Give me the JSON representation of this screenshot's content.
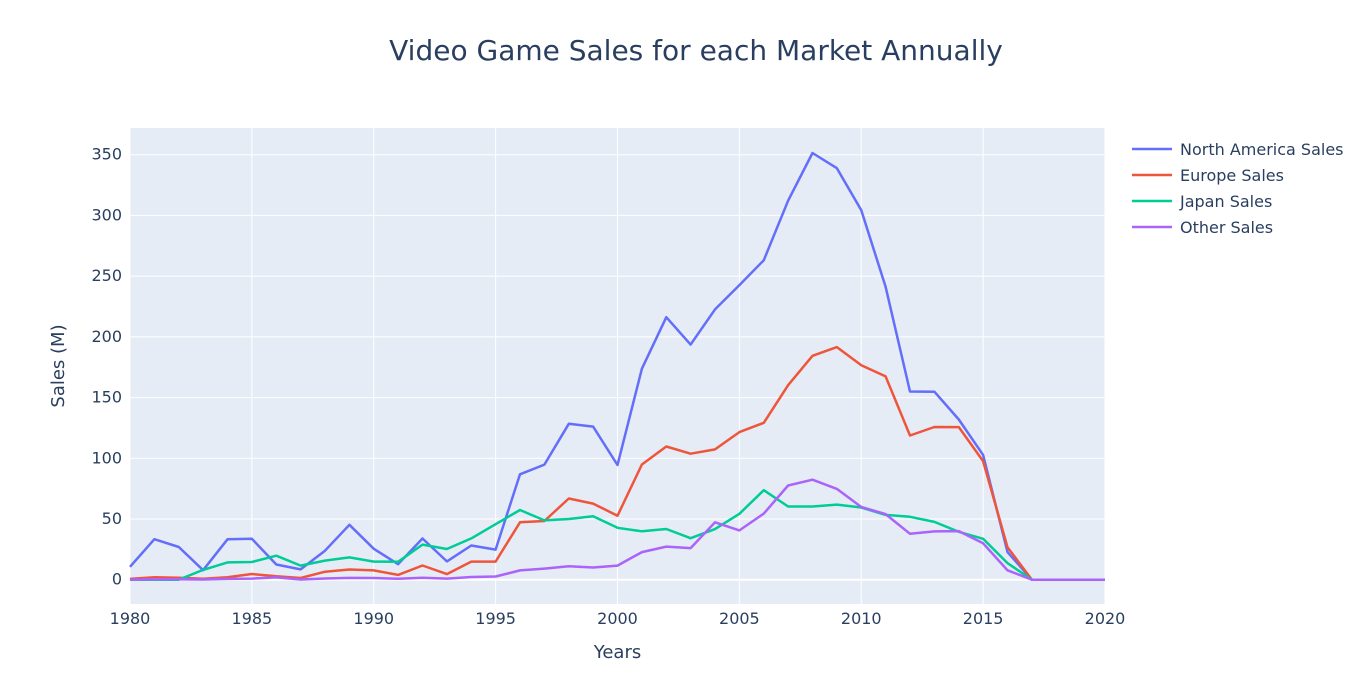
{
  "chart_data": {
    "type": "line",
    "title": "Video Game Sales for each Market Annually",
    "xlabel": "Years",
    "ylabel": "Sales (M)",
    "xlim": [
      1980,
      2020
    ],
    "ylim": [
      -20,
      372
    ],
    "x_ticks": [
      "1980",
      "1985",
      "1990",
      "1995",
      "2000",
      "2005",
      "2010",
      "2015",
      "2020"
    ],
    "y_ticks": [
      "0",
      "50",
      "100",
      "150",
      "200",
      "250",
      "300",
      "350"
    ],
    "grid": true,
    "legend_position": "right",
    "x": [
      1980,
      1981,
      1982,
      1983,
      1984,
      1985,
      1986,
      1987,
      1988,
      1989,
      1990,
      1991,
      1992,
      1993,
      1994,
      1995,
      1996,
      1997,
      1998,
      1999,
      2000,
      2001,
      2002,
      2003,
      2004,
      2005,
      2006,
      2007,
      2008,
      2009,
      2010,
      2011,
      2012,
      2013,
      2014,
      2015,
      2016,
      2017,
      2020
    ],
    "series": [
      {
        "name": "North America Sales",
        "color": "#636efa",
        "values": [
          10.6,
          33.4,
          26.9,
          7.8,
          33.3,
          33.7,
          12.5,
          8.5,
          23.9,
          45.2,
          25.5,
          12.8,
          33.9,
          15.1,
          28.2,
          24.8,
          86.8,
          94.8,
          128.4,
          126.1,
          94.5,
          173.8,
          216.2,
          193.6,
          222.6,
          242.6,
          263.1,
          312.1,
          351.4,
          338.9,
          304.2,
          241.2,
          154.96,
          154.8,
          131.97,
          102.8,
          22.7,
          0.0,
          0.0
        ]
      },
      {
        "name": "Europe Sales",
        "color": "#ef553b",
        "values": [
          0.67,
          1.96,
          1.65,
          0.8,
          2.1,
          4.74,
          2.84,
          1.41,
          6.59,
          8.44,
          7.63,
          3.95,
          11.71,
          4.65,
          14.88,
          14.9,
          47.26,
          48.32,
          66.9,
          62.67,
          52.75,
          94.89,
          109.74,
          103.81,
          107.32,
          121.55,
          129.24,
          160.18,
          184.4,
          191.59,
          176.57,
          167.44,
          118.78,
          125.8,
          125.65,
          97.71,
          26.76,
          0.0,
          0.0
        ]
      },
      {
        "name": "Japan Sales",
        "color": "#00cc96",
        "values": [
          0.0,
          0.0,
          0.0,
          8.1,
          14.27,
          14.56,
          19.81,
          11.63,
          15.76,
          18.36,
          14.88,
          14.78,
          28.91,
          25.33,
          33.99,
          45.75,
          57.44,
          48.87,
          50.04,
          52.34,
          42.77,
          39.86,
          41.76,
          34.2,
          41.65,
          54.28,
          73.73,
          60.29,
          60.26,
          61.89,
          59.49,
          53.35,
          51.8,
          47.59,
          39.46,
          33.72,
          13.7,
          0.0,
          0.0
        ]
      },
      {
        "name": "Other Sales",
        "color": "#ab63fa",
        "values": [
          0.12,
          0.32,
          0.31,
          0.14,
          0.7,
          0.92,
          1.93,
          0.2,
          0.99,
          1.5,
          1.4,
          0.74,
          1.65,
          0.89,
          2.2,
          2.64,
          7.69,
          9.13,
          11.03,
          10.05,
          11.62,
          22.76,
          27.28,
          26.01,
          47.29,
          40.58,
          54.43,
          77.58,
          82.39,
          74.77,
          59.9,
          54.06,
          37.8,
          39.78,
          40.02,
          30.01,
          7.75,
          0.0,
          0.0
        ]
      }
    ]
  }
}
